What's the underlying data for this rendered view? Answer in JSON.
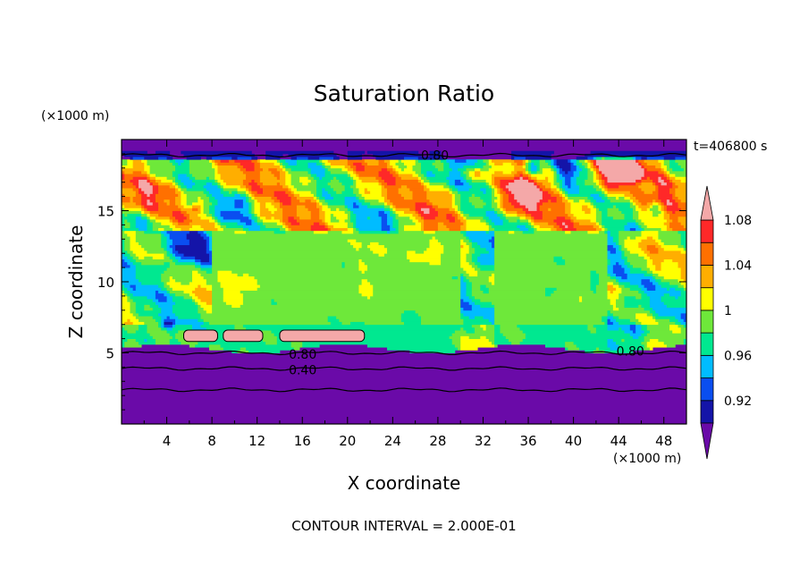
{
  "chart_data": {
    "type": "heatmap",
    "title": "Saturation Ratio",
    "time_label": "t=406800 s",
    "xlabel": "X coordinate",
    "ylabel": "Z coordinate",
    "x_unit": "(×1000 m)",
    "z_unit": "(×1000 m)",
    "xlim": [
      0,
      50
    ],
    "ylim": [
      0,
      20
    ],
    "x_ticks": [
      "4",
      "8",
      "12",
      "16",
      "20",
      "24",
      "28",
      "32",
      "36",
      "40",
      "44",
      "48"
    ],
    "y_ticks": [
      "5",
      "10",
      "15"
    ],
    "colorbar": {
      "labels": [
        "0.92",
        "0.96",
        "1",
        "1.04",
        "1.08"
      ],
      "colors": [
        "#6a0aa8",
        "#1414a8",
        "#0a4ef0",
        "#00bcff",
        "#00e890",
        "#6ee83a",
        "#ffff00",
        "#ffae00",
        "#ff7000",
        "#ff2828",
        "#f4a8a8"
      ]
    },
    "contour_labels": [
      "0.80",
      "0.80",
      "0.40",
      "0.80"
    ],
    "footer": "CONTOUR INTERVAL = 2.000E-01"
  }
}
